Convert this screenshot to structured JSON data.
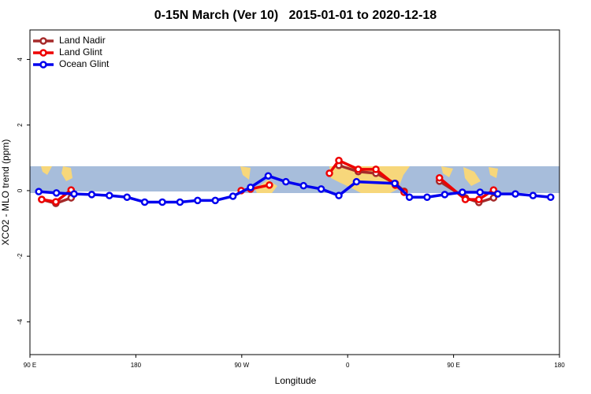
{
  "chart_data": {
    "type": "line",
    "title": "0-15N March (Ver 10)   2015-01-01 to 2020-12-18",
    "xlabel": "Longitude",
    "ylabel": "XCO2 - MLO trend (ppm)",
    "xlim": [
      90,
      540
    ],
    "ylim": [
      -5,
      4.9
    ],
    "xticks": [
      {
        "value": 90,
        "label": "90 E"
      },
      {
        "value": 180,
        "label": "180"
      },
      {
        "value": 270,
        "label": "90 W"
      },
      {
        "value": 360,
        "label": "0"
      },
      {
        "value": 450,
        "label": "90 E"
      },
      {
        "value": 540,
        "label": "180"
      }
    ],
    "yticks": [
      4,
      2,
      0,
      -2,
      -4
    ],
    "legend": "upper left",
    "series": [
      {
        "name": "Land Nadir",
        "color": "#a52a2a",
        "x": [
          100,
          112,
          125,
          300,
          352.5,
          369,
          384,
          400.5,
          408,
          425,
          438,
          460,
          471.5,
          484
        ],
        "values": [
          -0.27,
          -0.39,
          -0.22,
          null,
          0.77,
          0.58,
          0.53,
          0.22,
          -0.02,
          null,
          0.29,
          -0.22,
          -0.36,
          -0.22
        ]
      },
      {
        "name": "Land Glint",
        "color": "#ee0000",
        "x": [
          100,
          112,
          125,
          200,
          269.5,
          277.5,
          293.5,
          320,
          344.5,
          352.5,
          369,
          384,
          400.5,
          408,
          425,
          438,
          460,
          471.5,
          484
        ],
        "values": [
          -0.27,
          -0.34,
          0.02,
          null,
          0,
          0.05,
          0.17,
          null,
          0.53,
          0.92,
          0.65,
          0.65,
          0.17,
          -0.05,
          null,
          0.39,
          -0.27,
          -0.27,
          0.02
        ]
      },
      {
        "name": "Ocean Glint",
        "color": "#0000ee",
        "x": [
          97.5,
          112.5,
          127.5,
          142.5,
          157.5,
          172.5,
          187.5,
          202.5,
          217.5,
          232.5,
          247.5,
          262.5,
          277.5,
          292.5,
          307.5,
          322.5,
          337.5,
          352.5,
          367.5,
          400,
          412.5,
          427.5,
          442.5,
          457.5,
          472.5,
          487.5,
          502.5,
          517.5,
          532.5
        ],
        "values": [
          -0.03,
          -0.07,
          -0.1,
          -0.12,
          -0.15,
          -0.2,
          -0.35,
          -0.35,
          -0.35,
          -0.3,
          -0.3,
          -0.17,
          0.1,
          0.45,
          0.27,
          0.15,
          0.05,
          -0.15,
          0.27,
          0.22,
          -0.2,
          -0.2,
          -0.12,
          -0.05,
          -0.05,
          -0.1,
          -0.1,
          -0.15,
          -0.2
        ]
      }
    ]
  }
}
